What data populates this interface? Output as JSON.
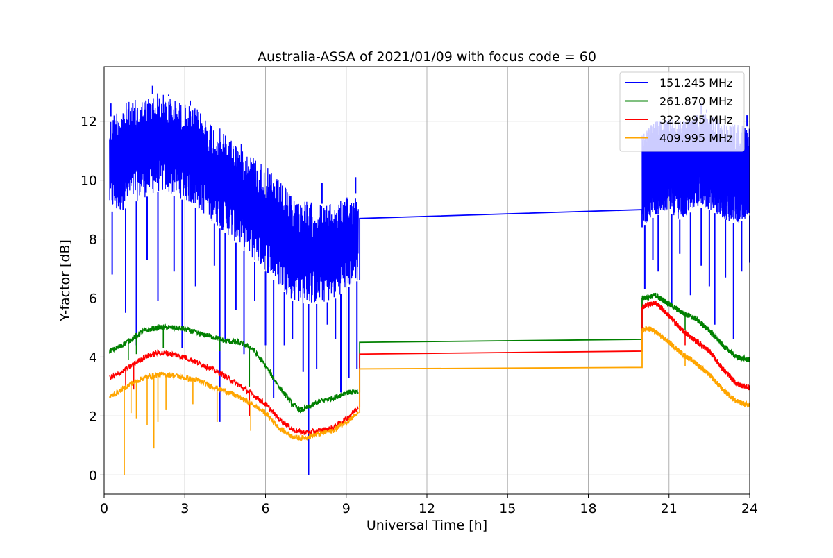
{
  "chart_data": {
    "type": "line",
    "title": "Australia-ASSA of 2021/01/09 with focus code = 60",
    "xlabel": "Universal Time [h]",
    "ylabel": "Y-factor [dB]",
    "xlim": [
      0,
      24
    ],
    "ylim": [
      -0.65,
      13.85
    ],
    "xticks": [
      0,
      3,
      6,
      9,
      12,
      15,
      18,
      21,
      24
    ],
    "xtick_labels": [
      "0",
      "3",
      "6",
      "9",
      "12",
      "15",
      "18",
      "21",
      "24"
    ],
    "yticks": [
      0,
      2,
      4,
      6,
      8,
      10,
      12
    ],
    "ytick_labels": [
      "0",
      "2",
      "4",
      "6",
      "8",
      "10",
      "12"
    ],
    "grid": true,
    "legend_position": "top-right",
    "series": [
      {
        "name": "151.245 MHz",
        "color": "#0000ff",
        "style": "noisy-band",
        "segments": [
          {
            "upper": [
              [
                0.2,
                12.1
              ],
              [
                0.5,
                12.5
              ],
              [
                1.0,
                12.7
              ],
              [
                1.5,
                12.8
              ],
              [
                2.0,
                13.0
              ],
              [
                2.5,
                12.8
              ],
              [
                3.0,
                12.6
              ],
              [
                3.5,
                12.4
              ],
              [
                4.0,
                12.0
              ],
              [
                4.5,
                11.6
              ],
              [
                5.0,
                11.3
              ],
              [
                5.5,
                10.9
              ],
              [
                6.0,
                10.5
              ],
              [
                6.5,
                10.0
              ],
              [
                7.0,
                9.5
              ],
              [
                7.5,
                9.3
              ],
              [
                8.0,
                9.2
              ],
              [
                8.5,
                9.2
              ],
              [
                9.0,
                9.4
              ],
              [
                9.45,
                9.6
              ]
            ],
            "lower": [
              [
                0.2,
                9.0
              ],
              [
                0.5,
                8.8
              ],
              [
                1.0,
                9.2
              ],
              [
                1.5,
                9.4
              ],
              [
                2.0,
                9.6
              ],
              [
                2.5,
                9.5
              ],
              [
                3.0,
                9.3
              ],
              [
                3.5,
                9.0
              ],
              [
                4.0,
                8.6
              ],
              [
                4.5,
                8.2
              ],
              [
                5.0,
                7.8
              ],
              [
                5.5,
                7.3
              ],
              [
                6.0,
                6.9
              ],
              [
                6.5,
                6.4
              ],
              [
                7.0,
                5.9
              ],
              [
                7.5,
                5.8
              ],
              [
                8.0,
                5.8
              ],
              [
                8.5,
                5.9
              ],
              [
                9.0,
                6.3
              ],
              [
                9.45,
                6.6
              ]
            ],
            "dips": [
              [
                0.3,
                6.8
              ],
              [
                0.8,
                5.5
              ],
              [
                1.2,
                4.4
              ],
              [
                1.6,
                7.3
              ],
              [
                2.0,
                5.9
              ],
              [
                2.6,
                6.9
              ],
              [
                2.9,
                4.3
              ],
              [
                3.4,
                6.4
              ],
              [
                4.1,
                7.1
              ],
              [
                4.3,
                1.8
              ],
              [
                4.5,
                4.6
              ],
              [
                4.9,
                5.6
              ],
              [
                5.2,
                4.1
              ],
              [
                5.6,
                5.9
              ],
              [
                6.0,
                4.4
              ],
              [
                6.3,
                2.6
              ],
              [
                6.7,
                4.4
              ],
              [
                7.0,
                4.6
              ],
              [
                7.4,
                3.5
              ],
              [
                7.6,
                0.0
              ],
              [
                7.9,
                3.6
              ],
              [
                8.3,
                5.1
              ],
              [
                8.6,
                4.6
              ],
              [
                8.8,
                2.8
              ],
              [
                9.1,
                3.3
              ],
              [
                9.4,
                3.6
              ]
            ],
            "spikes": [
              [
                0.25,
                12.6
              ],
              [
                1.8,
                13.2
              ],
              [
                2.4,
                12.9
              ],
              [
                3.2,
                12.7
              ],
              [
                8.1,
                9.9
              ],
              [
                9.35,
                10.1
              ]
            ]
          },
          {
            "upper": [
              [
                20.0,
                11.6
              ],
              [
                20.5,
                12.0
              ],
              [
                21.0,
                12.1
              ],
              [
                21.5,
                12.0
              ],
              [
                22.0,
                12.2
              ],
              [
                22.5,
                12.3
              ],
              [
                23.0,
                12.0
              ],
              [
                23.5,
                11.9
              ],
              [
                24.0,
                11.8
              ]
            ],
            "lower": [
              [
                20.0,
                8.4
              ],
              [
                20.5,
                8.8
              ],
              [
                21.0,
                8.9
              ],
              [
                21.5,
                8.6
              ],
              [
                22.0,
                9.1
              ],
              [
                22.5,
                9.0
              ],
              [
                23.0,
                8.7
              ],
              [
                23.5,
                8.5
              ],
              [
                24.0,
                8.8
              ]
            ],
            "dips": [
              [
                20.1,
                6.3
              ],
              [
                20.4,
                7.3
              ],
              [
                20.6,
                6.9
              ],
              [
                21.1,
                5.8
              ],
              [
                21.4,
                7.5
              ],
              [
                21.8,
                6.1
              ],
              [
                22.2,
                7.1
              ],
              [
                22.5,
                6.4
              ],
              [
                22.7,
                5.1
              ],
              [
                23.1,
                6.7
              ],
              [
                23.4,
                4.6
              ],
              [
                23.7,
                6.9
              ],
              [
                24.0,
                7.2
              ]
            ],
            "spikes": [
              [
                22.2,
                12.6
              ],
              [
                22.4,
                12.4
              ],
              [
                23.9,
                12.2
              ]
            ]
          }
        ],
        "connector": [
          [
            9.5,
            8.7
          ],
          [
            20.0,
            9.0
          ]
        ]
      },
      {
        "name": "261.870 MHz",
        "color": "#008000",
        "style": "line",
        "segments": [
          {
            "points": [
              [
                0.2,
                4.2
              ],
              [
                0.5,
                4.3
              ],
              [
                1.0,
                4.6
              ],
              [
                1.5,
                4.9
              ],
              [
                2.0,
                5.0
              ],
              [
                2.5,
                5.0
              ],
              [
                3.0,
                4.95
              ],
              [
                3.5,
                4.8
              ],
              [
                4.0,
                4.7
              ],
              [
                4.5,
                4.55
              ],
              [
                5.0,
                4.5
              ],
              [
                5.5,
                4.3
              ],
              [
                6.0,
                3.7
              ],
              [
                6.5,
                3.0
              ],
              [
                7.0,
                2.4
              ],
              [
                7.3,
                2.2
              ],
              [
                7.6,
                2.3
              ],
              [
                8.0,
                2.5
              ],
              [
                8.5,
                2.6
              ],
              [
                9.0,
                2.8
              ],
              [
                9.45,
                2.8
              ]
            ],
            "dips": [
              [
                0.9,
                3.9
              ],
              [
                1.2,
                4.1
              ],
              [
                2.2,
                4.3
              ],
              [
                4.3,
                4.2
              ],
              [
                5.4,
                3.0
              ],
              [
                7.3,
                2.1
              ]
            ]
          },
          {
            "points": [
              [
                20.0,
                6.0
              ],
              [
                20.3,
                6.05
              ],
              [
                20.5,
                6.1
              ],
              [
                21.0,
                5.8
              ],
              [
                21.5,
                5.5
              ],
              [
                22.0,
                5.3
              ],
              [
                22.5,
                4.9
              ],
              [
                23.0,
                4.4
              ],
              [
                23.5,
                4.0
              ],
              [
                24.0,
                3.9
              ]
            ],
            "dips": [
              [
                21.6,
                4.9
              ]
            ]
          }
        ],
        "connector": [
          [
            9.5,
            4.5
          ],
          [
            20.0,
            4.6
          ]
        ]
      },
      {
        "name": "322.995 MHz",
        "color": "#ff0000",
        "style": "line",
        "segments": [
          {
            "points": [
              [
                0.2,
                3.3
              ],
              [
                0.5,
                3.4
              ],
              [
                1.0,
                3.7
              ],
              [
                1.5,
                4.0
              ],
              [
                2.0,
                4.15
              ],
              [
                2.5,
                4.1
              ],
              [
                3.0,
                4.0
              ],
              [
                3.5,
                3.8
              ],
              [
                4.0,
                3.6
              ],
              [
                4.5,
                3.35
              ],
              [
                5.0,
                3.05
              ],
              [
                5.5,
                2.75
              ],
              [
                6.0,
                2.4
              ],
              [
                6.5,
                1.9
              ],
              [
                7.0,
                1.55
              ],
              [
                7.3,
                1.45
              ],
              [
                7.6,
                1.45
              ],
              [
                8.0,
                1.5
              ],
              [
                8.5,
                1.6
              ],
              [
                9.0,
                1.9
              ],
              [
                9.45,
                2.3
              ]
            ],
            "dips": [
              [
                0.8,
                3.0
              ],
              [
                1.1,
                2.9
              ],
              [
                5.4,
                2.0
              ]
            ]
          },
          {
            "points": [
              [
                20.0,
                5.7
              ],
              [
                20.3,
                5.8
              ],
              [
                20.5,
                5.85
              ],
              [
                21.0,
                5.4
              ],
              [
                21.5,
                4.9
              ],
              [
                22.0,
                4.55
              ],
              [
                22.5,
                4.2
              ],
              [
                23.0,
                3.6
              ],
              [
                23.5,
                3.1
              ],
              [
                24.0,
                2.95
              ]
            ],
            "dips": [
              [
                21.6,
                4.4
              ]
            ]
          }
        ],
        "connector": [
          [
            9.5,
            4.1
          ],
          [
            20.0,
            4.2
          ]
        ]
      },
      {
        "name": "409.995 MHz",
        "color": "#ffa500",
        "style": "line",
        "segments": [
          {
            "points": [
              [
                0.2,
                2.65
              ],
              [
                0.5,
                2.8
              ],
              [
                1.0,
                3.1
              ],
              [
                1.5,
                3.3
              ],
              [
                2.0,
                3.4
              ],
              [
                2.5,
                3.4
              ],
              [
                3.0,
                3.3
              ],
              [
                3.5,
                3.2
              ],
              [
                4.0,
                3.0
              ],
              [
                4.5,
                2.85
              ],
              [
                5.0,
                2.65
              ],
              [
                5.5,
                2.4
              ],
              [
                6.0,
                2.1
              ],
              [
                6.5,
                1.6
              ],
              [
                7.0,
                1.3
              ],
              [
                7.3,
                1.25
              ],
              [
                7.6,
                1.3
              ],
              [
                8.0,
                1.4
              ],
              [
                8.5,
                1.5
              ],
              [
                9.0,
                1.8
              ],
              [
                9.45,
                2.1
              ]
            ],
            "dips": [
              [
                0.75,
                0.0
              ],
              [
                1.0,
                2.1
              ],
              [
                1.2,
                1.9
              ],
              [
                1.6,
                1.7
              ],
              [
                1.85,
                0.9
              ],
              [
                2.0,
                1.8
              ],
              [
                2.3,
                2.2
              ],
              [
                3.3,
                2.4
              ],
              [
                4.2,
                1.8
              ],
              [
                5.45,
                1.5
              ]
            ]
          },
          {
            "points": [
              [
                20.0,
                4.9
              ],
              [
                20.3,
                4.95
              ],
              [
                20.5,
                4.85
              ],
              [
                21.0,
                4.5
              ],
              [
                21.5,
                4.1
              ],
              [
                22.0,
                3.8
              ],
              [
                22.5,
                3.4
              ],
              [
                23.0,
                2.9
              ],
              [
                23.5,
                2.5
              ],
              [
                24.0,
                2.35
              ]
            ],
            "dips": [
              [
                21.6,
                3.7
              ]
            ]
          }
        ],
        "connector": [
          [
            9.5,
            3.6
          ],
          [
            20.0,
            3.65
          ]
        ]
      }
    ]
  }
}
